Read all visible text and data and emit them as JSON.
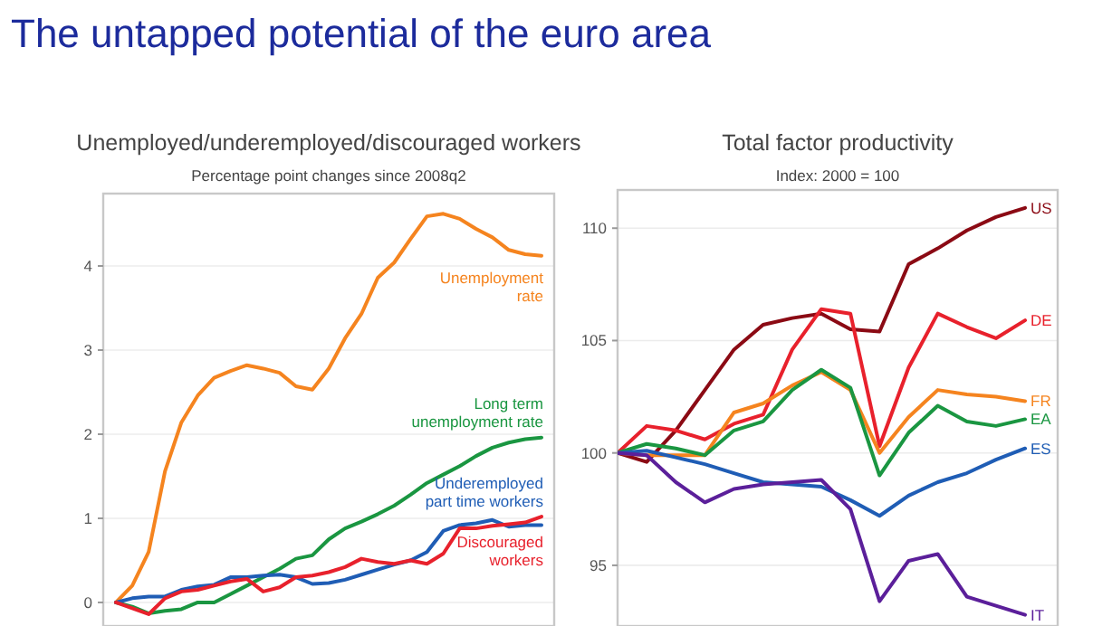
{
  "chart_data": [
    {
      "type": "line",
      "title": "Unemployed/underemployed/discouraged workers",
      "subtitle": "Percentage point changes since 2008q2",
      "annotations": [
        "The untapped potential of the euro area"
      ],
      "categories": [
        null,
        null,
        null,
        null,
        null,
        null,
        null,
        null,
        null,
        null,
        null,
        null,
        null,
        null,
        null,
        null,
        null,
        null,
        null,
        null,
        null,
        null,
        null,
        null,
        null,
        null,
        null
      ],
      "series": [
        {
          "name": "Unemployment rate",
          "color": "#f5841f",
          "values": [
            0,
            0.2,
            0.6,
            1.56,
            2.14,
            2.46,
            2.67,
            2.75,
            2.82,
            2.78,
            2.73,
            2.57,
            2.53,
            2.78,
            3.14,
            3.43,
            3.86,
            4.04,
            4.32,
            4.59,
            4.62,
            4.56,
            4.44,
            4.34,
            4.19,
            4.14,
            4.12
          ]
        },
        {
          "name": "Long term unemployment rate",
          "color": "#1a9641",
          "values": [
            0,
            -0.05,
            -0.13,
            -0.1,
            -0.08,
            0,
            0,
            0.1,
            0.2,
            0.3,
            0.4,
            0.52,
            0.56,
            0.75,
            0.88,
            0.96,
            1.05,
            1.15,
            1.28,
            1.42,
            1.52,
            1.62,
            1.74,
            1.84,
            1.9,
            1.94,
            1.96
          ]
        },
        {
          "name": "Underemployed part time workers",
          "color": "#1f5db5",
          "values": [
            0,
            0.05,
            0.07,
            0.07,
            0.15,
            0.19,
            0.21,
            0.3,
            0.3,
            0.32,
            0.33,
            0.3,
            0.22,
            0.23,
            0.27,
            0.33,
            0.39,
            0.45,
            0.5,
            0.6,
            0.85,
            0.92,
            0.94,
            0.98,
            0.9,
            0.92,
            0.92
          ]
        },
        {
          "name": "Discouraged workers",
          "color": "#e8212c",
          "values": [
            0,
            -0.07,
            -0.14,
            0.05,
            0.13,
            0.15,
            0.2,
            0.25,
            0.28,
            0.13,
            0.18,
            0.3,
            0.32,
            0.36,
            0.42,
            0.52,
            0.48,
            0.46,
            0.5,
            0.46,
            0.58,
            0.88,
            0.88,
            0.91,
            0.93,
            0.95,
            1.02
          ]
        }
      ],
      "ylim": [
        -0.28,
        4.86
      ],
      "yticks": [
        0,
        1,
        2,
        3,
        4
      ],
      "grid": "y",
      "legend": false,
      "line_style": "solid",
      "marker": "none"
    },
    {
      "type": "line",
      "title": "Total factor productivity",
      "subtitle": "Index: 2000 = 100",
      "categories": [
        null,
        null,
        null,
        null,
        null,
        null,
        null,
        null,
        null,
        null,
        null,
        null,
        null,
        null,
        null
      ],
      "series": [
        {
          "name": "US",
          "color": "#8b0a14",
          "values": [
            100,
            99.6,
            101.0,
            102.8,
            104.6,
            105.7,
            106.0,
            106.2,
            105.5,
            105.4,
            108.4,
            109.1,
            109.9,
            110.5,
            110.9
          ]
        },
        {
          "name": "DE",
          "color": "#e8212c",
          "values": [
            100,
            101.2,
            101.0,
            100.6,
            101.3,
            101.7,
            104.6,
            106.4,
            106.2,
            100.3,
            103.8,
            106.2,
            105.6,
            105.1,
            105.9
          ]
        },
        {
          "name": "FR",
          "color": "#f5841f",
          "values": [
            100,
            99.9,
            99.9,
            99.9,
            101.8,
            102.2,
            103.0,
            103.6,
            102.8,
            100.0,
            101.6,
            102.8,
            102.6,
            102.5,
            102.3
          ]
        },
        {
          "name": "EA",
          "color": "#1a9641",
          "values": [
            100,
            100.4,
            100.2,
            99.9,
            101.0,
            101.4,
            102.8,
            103.7,
            102.9,
            99.0,
            100.9,
            102.1,
            101.4,
            101.2,
            101.5
          ]
        },
        {
          "name": "ES",
          "color": "#1f5db5",
          "values": [
            100,
            100.1,
            99.8,
            99.5,
            99.1,
            98.7,
            98.6,
            98.5,
            97.9,
            97.2,
            98.1,
            98.7,
            99.1,
            99.7,
            100.2
          ]
        },
        {
          "name": "IT",
          "color": "#5b1f9a",
          "values": [
            100,
            99.9,
            98.7,
            97.8,
            98.4,
            98.6,
            98.7,
            98.8,
            97.5,
            93.4,
            95.2,
            95.5,
            93.6,
            93.2,
            92.8
          ]
        }
      ],
      "ylim": [
        92.3,
        111.7
      ],
      "yticks": [
        95,
        100,
        105,
        110
      ],
      "grid": "y",
      "legend": false,
      "line_style": "solid",
      "marker": "none"
    }
  ]
}
